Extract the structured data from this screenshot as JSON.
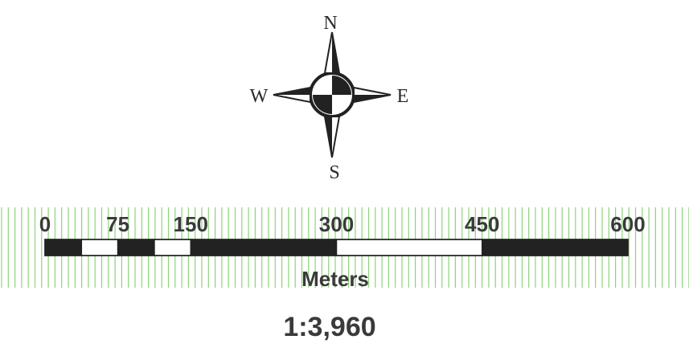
{
  "compass": {
    "north": "N",
    "east": "E",
    "south": "S",
    "west": "W"
  },
  "scale_bar": {
    "units": "Meters",
    "ticks": [
      "0",
      "75",
      "150",
      "300",
      "450",
      "600"
    ],
    "segments": [
      {
        "from": 0,
        "to": 37.5,
        "fill": "black"
      },
      {
        "from": 37.5,
        "to": 75,
        "fill": "white"
      },
      {
        "from": 75,
        "to": 112.5,
        "fill": "black"
      },
      {
        "from": 112.5,
        "to": 150,
        "fill": "white"
      },
      {
        "from": 150,
        "to": 300,
        "fill": "black"
      },
      {
        "from": 300,
        "to": 450,
        "fill": "white"
      },
      {
        "from": 450,
        "to": 600,
        "fill": "black"
      }
    ],
    "max": 600
  },
  "scale_ratio": "1:3,960",
  "colors": {
    "ink": "#222222",
    "grid": "#8fd27a",
    "background": "#ffffff"
  }
}
